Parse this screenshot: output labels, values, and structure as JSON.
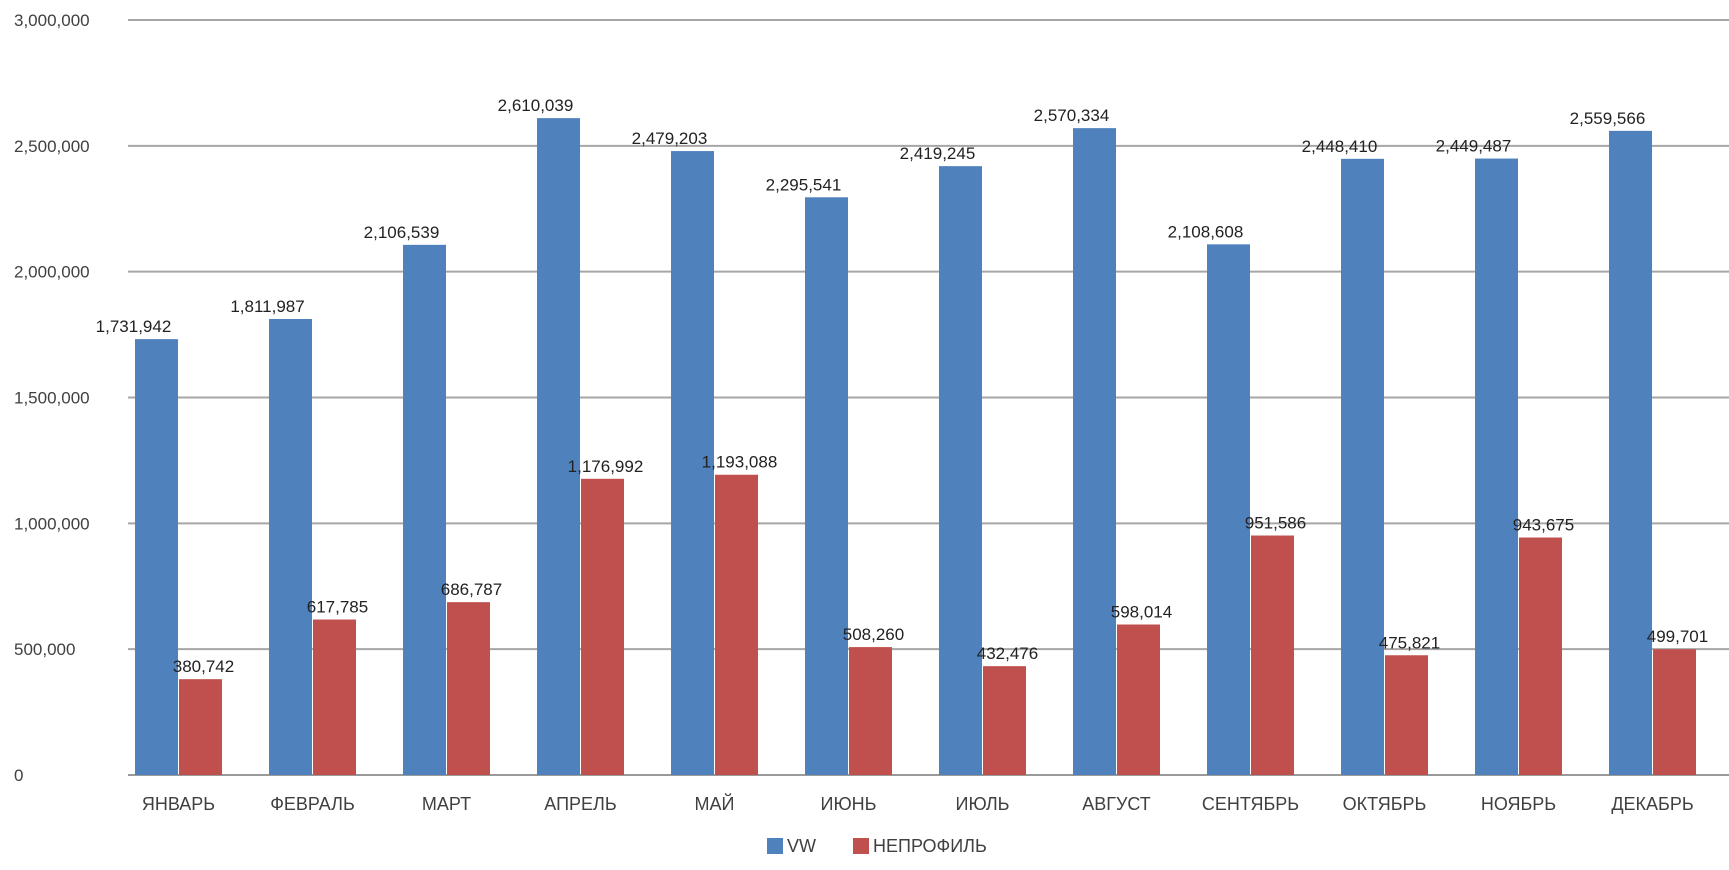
{
  "chart_data": {
    "type": "bar",
    "title": "",
    "xlabel": "",
    "ylabel": "",
    "ylim": [
      0,
      3000000
    ],
    "yticks": [
      0,
      500000,
      1000000,
      1500000,
      2000000,
      2500000,
      3000000
    ],
    "ytick_labels": [
      "0",
      "500,000",
      "1,000,000",
      "1,500,000",
      "2,000,000",
      "2,500,000",
      "3,000,000"
    ],
    "grid": true,
    "legend_position": "bottom",
    "categories": [
      "ЯНВАРЬ",
      "ФЕВРАЛЬ",
      "МАРТ",
      "АПРЕЛЬ",
      "МАЙ",
      "ИЮНЬ",
      "ИЮЛЬ",
      "АВГУСТ",
      "СЕНТЯБРЬ",
      "ОКТЯБРЬ",
      "НОЯБРЬ",
      "ДЕКАБРЬ"
    ],
    "series": [
      {
        "name": "VW",
        "color": "#4F81BD",
        "values": [
          1731942,
          1811987,
          2106539,
          2610039,
          2479203,
          2295541,
          2419245,
          2570334,
          2108608,
          2448410,
          2449487,
          2559566
        ],
        "value_labels": [
          "1,731,942",
          "1,811,987",
          "2,106,539",
          "2,610,039",
          "2,479,203",
          "2,295,541",
          "2,419,245",
          "2,570,334",
          "2,108,608",
          "2,448,410",
          "2,449,487",
          "2,559,566"
        ]
      },
      {
        "name": "НЕПРОФИЛЬ",
        "color": "#C0504D",
        "values": [
          380742,
          617785,
          686787,
          1176992,
          1193088,
          508260,
          432476,
          598014,
          951586,
          475821,
          943675,
          499701
        ],
        "value_labels": [
          "380,742",
          "617,785",
          "686,787",
          "1,176,992",
          "1,193,088",
          "508,260",
          "432,476",
          "598,014",
          "951,586",
          "475,821",
          "943,675",
          "499,701"
        ]
      }
    ]
  }
}
